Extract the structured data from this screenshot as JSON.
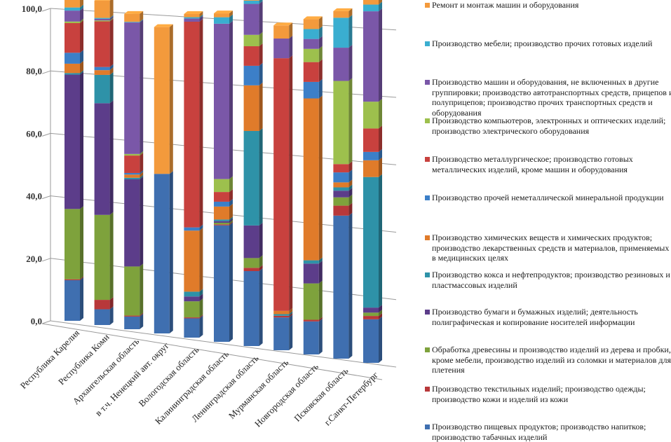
{
  "chart_data": {
    "type": "bar",
    "subtype": "stacked-100-3d",
    "title": "",
    "xlabel": "",
    "ylabel": "",
    "ylim": [
      0,
      100
    ],
    "yticks": [
      "0,0",
      "20,0",
      "40,0",
      "60,0",
      "80,0",
      "100,0"
    ],
    "grid": true,
    "legend_position": "right",
    "categories": [
      "Республика Карелия",
      "Республика Коми",
      "Архангельская область",
      "в т.ч. Ненецкий авт. округ",
      "Вологодская область",
      "Калининградская область",
      "Ленинградская область",
      "Мурманская область",
      "Новгородская область",
      "Псковская область",
      "г.Санкт-Петербург"
    ],
    "series": [
      {
        "name": "Производство пищевых продуктов; производство напитков; производство табачных изделий",
        "color": "#3f6fb0",
        "values": [
          13,
          5,
          4,
          50,
          6,
          36,
          23,
          10,
          10,
          43,
          13
        ]
      },
      {
        "name": "Производство текстильных изделий; производство одежды; производство кожи и изделий из кожи",
        "color": "#b8383a",
        "values": [
          0.3,
          3,
          0.3,
          0,
          0.3,
          0.3,
          1,
          0.5,
          0.5,
          3,
          1
        ]
      },
      {
        "name": "Обработка древесины и производство изделий из дерева и пробки, кроме мебели, производство изделий из соломки и материалов для плетения",
        "color": "#7ea23c",
        "values": [
          22.5,
          27,
          15.5,
          0,
          5,
          0.5,
          3,
          0,
          11,
          2.5,
          1
        ]
      },
      {
        "name": "Производство бумаги и бумажных изделий; деятельность полиграфическая и копирование носителей информации",
        "color": "#5c3d8a",
        "values": [
          43,
          35.5,
          27.5,
          0,
          1.5,
          0.5,
          10,
          0,
          6,
          2,
          1.5
        ]
      },
      {
        "name": "Производство кокса и нефтепродуктов; производство резиновых и пластмассовых изделий",
        "color": "#2e92a8",
        "values": [
          0.5,
          9,
          0.5,
          0,
          1.5,
          0.5,
          29,
          0.5,
          1,
          1,
          39
        ]
      },
      {
        "name": "Производство химических веществ и химических продуктов; производство лекарственных средств и материалов, применяемых в медицинских целях",
        "color": "#e07b2a",
        "values": [
          3,
          1.5,
          1,
          0,
          19,
          4,
          14,
          1,
          49,
          1.5,
          5
        ]
      },
      {
        "name": "Производство прочей неметаллической минеральной продукции",
        "color": "#3c7fc8",
        "values": [
          3.5,
          1,
          0.5,
          0,
          1,
          1.5,
          6,
          0,
          5,
          3,
          2.5
        ]
      },
      {
        "name": "Производство металлургическое; производство готовых металлических изделий, кроме машин и оборудования",
        "color": "#c8413e",
        "values": [
          9.5,
          14.5,
          5.5,
          0,
          64,
          3,
          6,
          77,
          6,
          2.5,
          7
        ]
      },
      {
        "name": "Производство компьютеров, электронных и оптических изделий; производство электрического оборудования",
        "color": "#9dc04d",
        "values": [
          0.5,
          0.3,
          0.5,
          0,
          0,
          4,
          3.5,
          0,
          4,
          25,
          8
        ]
      },
      {
        "name": "Производство машин и оборудования, не включенных в другие группировки; производство автотранспортных средств, прицепов и полуприцепов; производство прочих транспортных средств и оборудования",
        "color": "#7a57a8",
        "values": [
          3.5,
          0.5,
          41.5,
          0,
          1,
          48,
          9.5,
          6,
          3,
          10,
          27
        ]
      },
      {
        "name": "Производство мебели; производство прочих готовых изделий",
        "color": "#3aaed0",
        "values": [
          1,
          0.3,
          0.2,
          0,
          0.4,
          2,
          1,
          0,
          3,
          9,
          2
        ]
      },
      {
        "name": "Ремонт и монтаж машин и оборудования",
        "color": "#f39a3c",
        "values": [
          4.5,
          5.5,
          2.5,
          46,
          1,
          1.2,
          2.5,
          4,
          3,
          2,
          4
        ]
      }
    ]
  },
  "legend": {
    "items": [
      {
        "label": "Ремонт и монтаж  машин и оборудования",
        "color": "#f39a3c"
      },
      {
        "label": "Производство мебели;  производство прочих готовых изделий",
        "color": "#3aaed0"
      },
      {
        "label": "Производство машин и оборудования, не включенных  в другие группировки; производство автотранспортных средств, прицепов и полуприцепов; производство прочих транспортных средств и  оборудования",
        "color": "#7a57a8"
      },
      {
        "label": "Производство компьютеров, электронных и оптических изделий; производство электрического оборудования",
        "color": "#9dc04d"
      },
      {
        "label": "Производство металлургическое; производство готовых металлических  изделий,  кроме машин  и оборудования",
        "color": "#c8413e"
      },
      {
        "label": "Производство прочей неметаллической  минеральной продукции",
        "color": "#3c7fc8"
      },
      {
        "label": "Производство химических  веществ и химических продуктов; производство лекарственных средств и материалов, применяемых  в медицинских  целях",
        "color": "#e07b2a"
      },
      {
        "label": "Производство кокса и нефтепродуктов; производство резиновых и пластмассовых  изделий",
        "color": "#2e92a8"
      },
      {
        "label": "Производство бумаги и бумажных  изделий;  деятельность полиграфическая и копирование носителей  информации",
        "color": "#5c3d8a"
      },
      {
        "label": "Обработка древесины и производство изделий  из дерева и пробки, кроме мебели,  производство изделий  из соломки и материалов для плетения",
        "color": "#7ea23c"
      },
      {
        "label": "Производство текстильных изделий;  производство одежды; производство кожи и изделий  из кожи",
        "color": "#b8383a"
      },
      {
        "label": "Производство пищевых  продуктов; производство напитков; производство табачных  изделий",
        "color": "#3f6fb0"
      }
    ]
  }
}
